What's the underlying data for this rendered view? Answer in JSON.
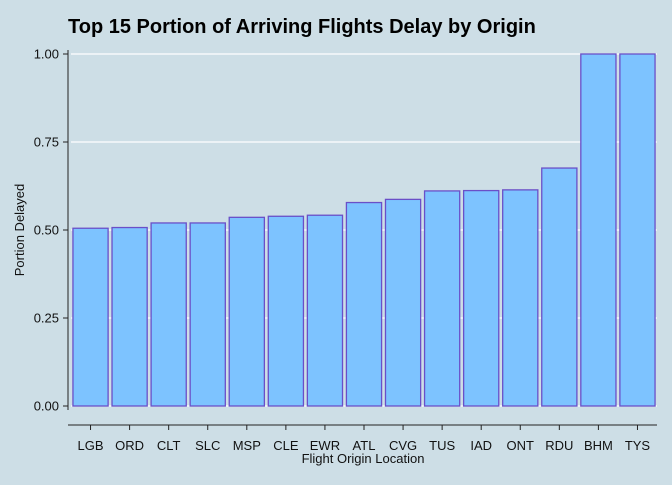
{
  "chart_data": {
    "type": "bar",
    "title": "Top 15 Portion of Arriving Flights Delay by Origin",
    "xlabel": "Flight Origin Location",
    "ylabel": "Portion Delayed",
    "categories": [
      "LGB",
      "ORD",
      "CLT",
      "SLC",
      "MSP",
      "CLE",
      "EWR",
      "ATL",
      "CVG",
      "TUS",
      "IAD",
      "ONT",
      "RDU",
      "BHM",
      "TYS"
    ],
    "values": [
      0.505,
      0.507,
      0.52,
      0.52,
      0.536,
      0.539,
      0.542,
      0.578,
      0.587,
      0.611,
      0.612,
      0.614,
      0.676,
      1.0,
      1.0
    ],
    "ylim": [
      0,
      1.0
    ],
    "yticks": [
      0,
      0.25,
      0.5,
      0.75,
      1.0
    ],
    "ytick_labels": [
      "0.00",
      "0.25",
      "0.50",
      "0.75",
      "1.00"
    ],
    "grid": true,
    "legend": "none",
    "colors": {
      "background": "#cddee6",
      "bar_fill": "#7dc3ff",
      "bar_stroke": "#6a4fc8",
      "grid": "#ffffff",
      "axis": "#222222"
    }
  }
}
